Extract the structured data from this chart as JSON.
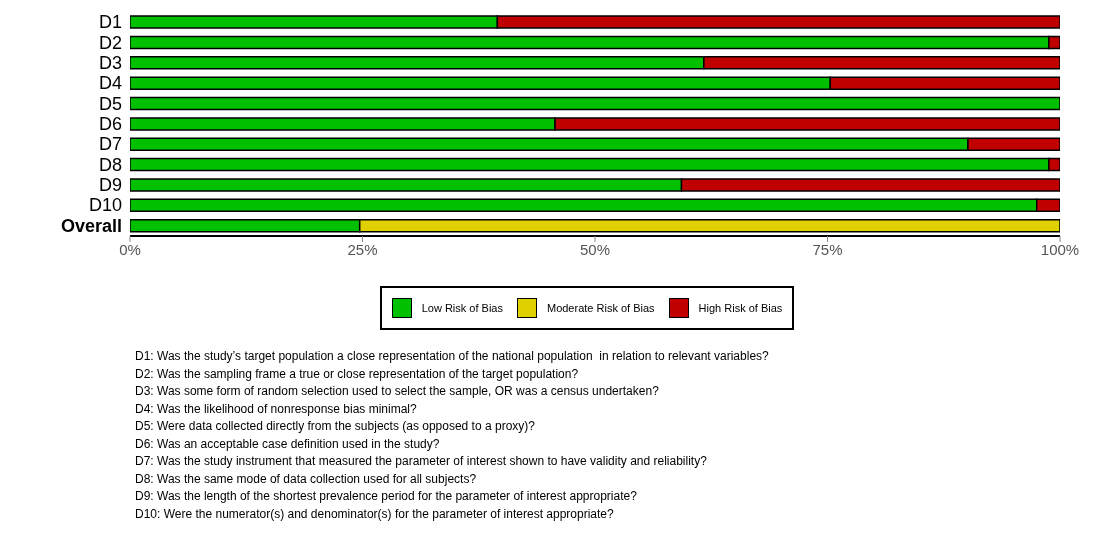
{
  "chart_data": {
    "type": "bar",
    "orientation": "horizontal",
    "stacked": true,
    "categories": [
      "D1",
      "D2",
      "D3",
      "D4",
      "D5",
      "D6",
      "D7",
      "D8",
      "D9",
      "D10",
      "Overall"
    ],
    "series": [
      {
        "name": "Low Risk of Bias",
        "color": "#00c000",
        "values": [
          39.5,
          98.8,
          61.7,
          75.3,
          100,
          45.7,
          90.1,
          98.8,
          59.3,
          97.5,
          24.7
        ]
      },
      {
        "name": "Moderate Risk of Bias",
        "color": "#e0d000",
        "values": [
          0,
          0,
          0,
          0,
          0,
          0,
          0,
          0,
          0,
          0,
          75.3
        ]
      },
      {
        "name": "High Risk of Bias",
        "color": "#c00000",
        "values": [
          60.5,
          1.2,
          38.3,
          24.7,
          0,
          54.3,
          9.9,
          1.2,
          40.7,
          2.5,
          0
        ]
      }
    ],
    "xlim": [
      0,
      100
    ],
    "xticks": [
      {
        "value": 0,
        "label": "0%"
      },
      {
        "value": 25,
        "label": "25%"
      },
      {
        "value": 50,
        "label": "50%"
      },
      {
        "value": 75,
        "label": "75%"
      },
      {
        "value": 100,
        "label": "100%"
      }
    ],
    "legend": "bottom",
    "annotations": [
      "D1: Was the study’s target population a close representation of the national population  in relation to relevant variables?",
      "D2: Was the sampling frame a true or close representation of the target population?",
      "D3: Was some form of random selection used to select the sample, OR was a census undertaken?",
      "D4: Was the likelihood of nonresponse bias minimal?",
      "D5: Were data collected directly from the subjects (as opposed to a proxy)?",
      "D6: Was an acceptable case definition used in the study?",
      "D7: Was the study instrument that measured the parameter of interest shown to have validity and reliability?",
      "D8: Was the same mode of data collection used for all subjects?",
      "D9: Was the length of the shortest prevalence period for the parameter of interest appropriate?",
      "D10: Were the numerator(s) and denominator(s) for the parameter of interest appropriate?"
    ]
  }
}
